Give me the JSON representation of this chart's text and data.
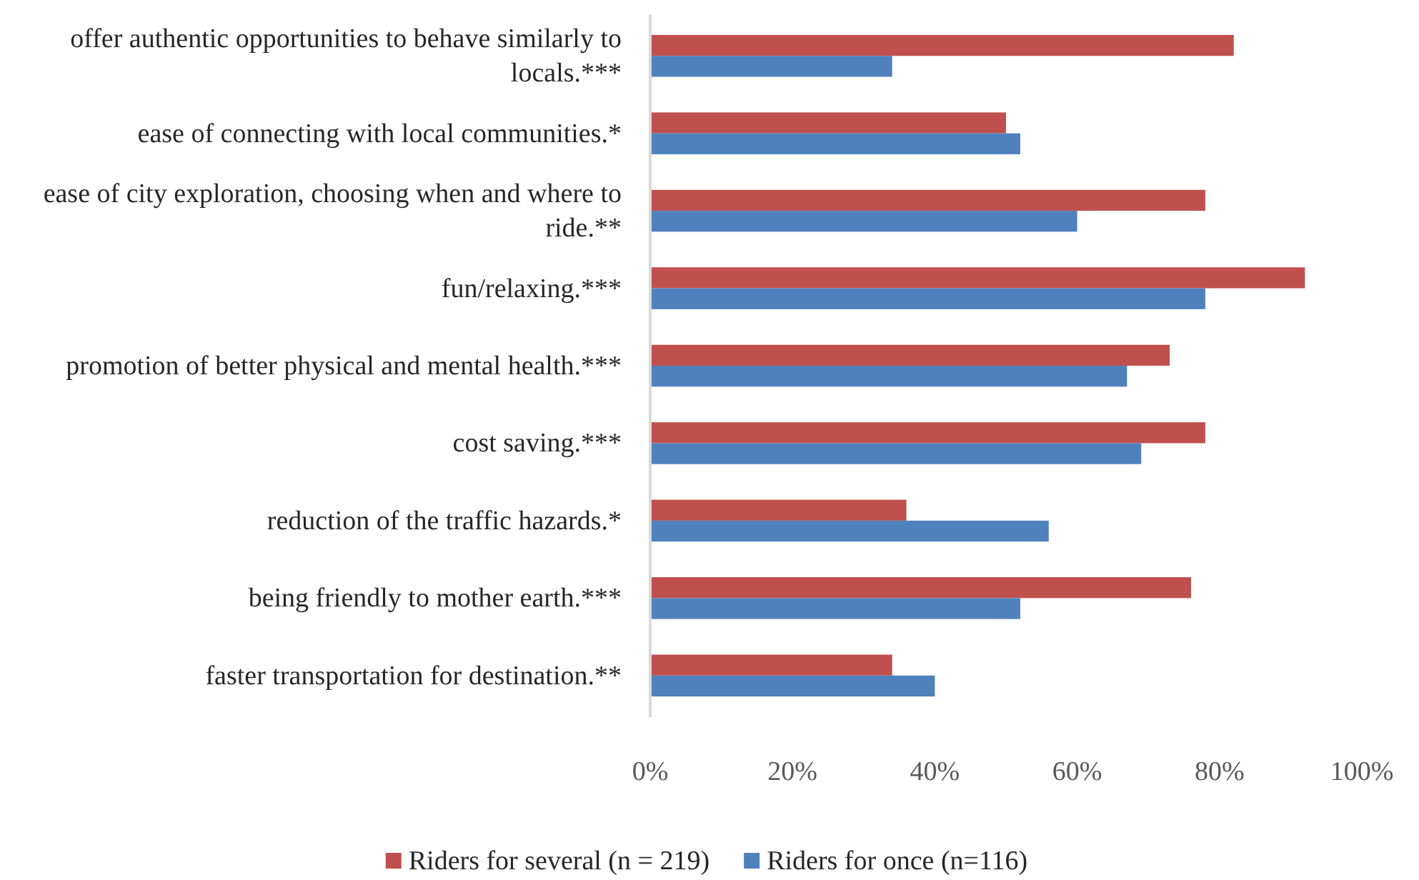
{
  "chart_data": {
    "type": "bar",
    "orientation": "horizontal",
    "categories": [
      "offer authentic opportunities to behave similarly to locals.***",
      "ease of connecting with local communities.*",
      "ease of city exploration, choosing when and where to ride.**",
      "fun/relaxing.***",
      "promotion of better physical and mental health.***",
      "cost saving.***",
      "reduction of the traffic hazards.*",
      "being friendly to mother earth.***",
      "faster transportation for destination.**"
    ],
    "series": [
      {
        "name": "Riders for several (n = 219)",
        "color": "#c0504d",
        "values": [
          82,
          50,
          78,
          92,
          73,
          78,
          36,
          76,
          34
        ]
      },
      {
        "name": "Riders for once (n=116)",
        "color": "#4f81bd",
        "values": [
          34,
          52,
          60,
          78,
          67,
          69,
          56,
          52,
          40
        ]
      }
    ],
    "xlim": [
      0,
      100
    ],
    "xticks": [
      {
        "value": 0,
        "label": "0%"
      },
      {
        "value": 20,
        "label": "20%"
      },
      {
        "value": 40,
        "label": "40%"
      },
      {
        "value": 60,
        "label": "60%"
      },
      {
        "value": 80,
        "label": "80%"
      },
      {
        "value": 100,
        "label": "100%"
      }
    ],
    "grid": false,
    "legend": "bottom"
  }
}
